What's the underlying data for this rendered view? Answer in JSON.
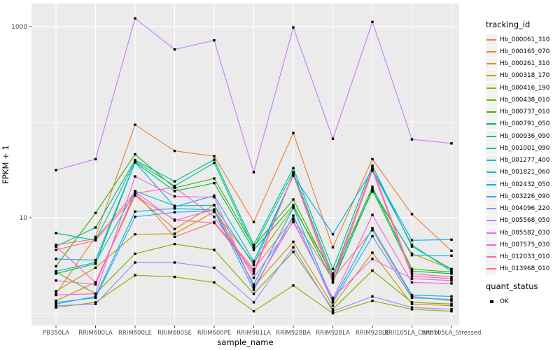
{
  "axes": {
    "y_title": "FPKM + 1",
    "x_title": "sample_name"
  },
  "legend": {
    "tracking_title": "tracking_id",
    "quant_title": "quant_status",
    "quant_items": [
      {
        "label": "OK",
        "marker": "black-square"
      }
    ]
  },
  "style": {
    "panel_bg": "#EBEBEB",
    "grid_color": "#FFFFFF",
    "tick_label_color": "#4D4D4D",
    "point_color": "#000000",
    "legend_key_bg": "#F2F2F2"
  },
  "chart_data": {
    "type": "line",
    "title": "",
    "xlabel": "sample_name",
    "ylabel": "FPKM + 1",
    "y_scale": "log10",
    "ylim": [
      0.74,
      1740
    ],
    "y_major_ticks": [
      10,
      1000
    ],
    "y_tick_labels": [
      "10",
      "1000"
    ],
    "y_minor_gridlines": [
      1,
      100
    ],
    "grid": true,
    "legend_position": "right",
    "marker": "black-square",
    "categories": [
      "PB350LA",
      "RRIM600LA",
      "RRIM600LE",
      "RRIM600SE",
      "RRIM600PE",
      "RRIM901LA",
      "RRIM928BA",
      "RRIM928LA",
      "RRIM928LE",
      "RRII105LA_Control",
      "RRII105LA_Stressed"
    ],
    "series": [
      {
        "name": "Hb_000061_310",
        "color": "#F8766D",
        "values": [
          5.2,
          6.0,
          18.5,
          6.3,
          9.0,
          2.9,
          9.8,
          2.3,
          7.4,
          1.5,
          1.35
        ]
      },
      {
        "name": "Hb_000165_070",
        "color": "#EA8331",
        "values": [
          1.6,
          6.3,
          94,
          50,
          44,
          9.0,
          77,
          4.9,
          41,
          10.9,
          4.5
        ]
      },
      {
        "name": "Hb_000261_310",
        "color": "#D89000",
        "values": [
          1.35,
          2.1,
          17.2,
          7.6,
          13.6,
          1.9,
          5.6,
          1.2,
          4.3,
          1.25,
          1.2
        ]
      },
      {
        "name": "Hb_000318_170",
        "color": "#C09B00",
        "values": [
          1.7,
          3.0,
          6.7,
          6.8,
          11.5,
          3.4,
          12.8,
          2.6,
          18.8,
          4.2,
          2.9
        ]
      },
      {
        "name": "Hb_000416_190",
        "color": "#A3A500",
        "values": [
          1.15,
          1.3,
          2.5,
          2.4,
          2.1,
          1.05,
          1.95,
          1.0,
          1.35,
          1.1,
          1.05
        ]
      },
      {
        "name": "Hb_000438_010",
        "color": "#7CAE00",
        "values": [
          2.7,
          1.6,
          4.2,
          5.3,
          4.6,
          1.6,
          4.4,
          1.1,
          2.8,
          1.3,
          1.25
        ]
      },
      {
        "name": "Hb_000737_010",
        "color": "#39B600",
        "values": [
          3.1,
          11.2,
          46,
          20.5,
          25.7,
          5.0,
          15.5,
          2.4,
          21,
          2.9,
          2.7
        ]
      },
      {
        "name": "Hb_000791_050",
        "color": "#00BB4E",
        "values": [
          2.6,
          3.3,
          38,
          19,
          23,
          4.6,
          13.5,
          2.2,
          19.5,
          2.75,
          2.6
        ]
      },
      {
        "name": "Hb_000936_090",
        "color": "#00BF7D",
        "values": [
          5.0,
          7.9,
          40,
          24,
          40.5,
          5.2,
          33,
          2.9,
          35,
          5.0,
          2.9
        ]
      },
      {
        "name": "Hb_001001_090",
        "color": "#00C1A3",
        "values": [
          6.9,
          5.8,
          39,
          21.5,
          37.5,
          4.8,
          30,
          2.5,
          31.5,
          5.2,
          2.75
        ]
      },
      {
        "name": "Hb_001277_400",
        "color": "#00BFC4",
        "values": [
          2.75,
          3.4,
          19,
          13.3,
          13.5,
          3.2,
          28,
          2.1,
          20,
          4.05,
          4.0
        ]
      },
      {
        "name": "Hb_001821_060",
        "color": "#00BAE0",
        "values": [
          1.25,
          1.5,
          11.6,
          12.5,
          12,
          2.0,
          12.7,
          1.35,
          7.8,
          1.55,
          1.5
        ]
      },
      {
        "name": "Hb_002432_050",
        "color": "#00B0F6",
        "values": [
          3.7,
          3.6,
          38,
          13,
          17,
          3.5,
          27.5,
          6.7,
          32,
          5.8,
          5.9
        ]
      },
      {
        "name": "Hb_003226_090",
        "color": "#35A2FF",
        "values": [
          1.3,
          1.45,
          10.2,
          11.4,
          11.8,
          1.75,
          10.5,
          1.3,
          6.4,
          1.45,
          1.4
        ]
      },
      {
        "name": "Hb_004096_220",
        "color": "#9590FF",
        "values": [
          1.2,
          1.25,
          3.4,
          3.4,
          3.0,
          1.3,
          4.9,
          1.05,
          1.5,
          1.15,
          1.1
        ]
      },
      {
        "name": "Hb_005568_050",
        "color": "#C77CFF",
        "values": [
          31.5,
          41,
          1220,
          576,
          718,
          30,
          980,
          67,
          1120,
          66,
          60
        ]
      },
      {
        "name": "Hb_005582_030",
        "color": "#E76BF3",
        "values": [
          2.2,
          2.0,
          18.7,
          9.35,
          12.2,
          2.35,
          9.0,
          1.45,
          3.7,
          2.3,
          2.2
        ]
      },
      {
        "name": "Hb_007575_030",
        "color": "#FA62DB",
        "values": [
          1.55,
          1.6,
          27,
          16.7,
          16.4,
          1.85,
          9.3,
          1.4,
          10.7,
          2.1,
          2.05
        ]
      },
      {
        "name": "Hb_012033_010",
        "color": "#FF62BC",
        "values": [
          5.0,
          2.1,
          18,
          20.8,
          10.2,
          2.6,
          29,
          2.3,
          33,
          2.6,
          2.4
        ]
      },
      {
        "name": "Hb_013968_010",
        "color": "#FF6A98",
        "values": [
          4.6,
          5.8,
          17,
          9.5,
          8.8,
          2.75,
          28.5,
          2.1,
          31,
          2.45,
          2.3
        ]
      }
    ]
  }
}
